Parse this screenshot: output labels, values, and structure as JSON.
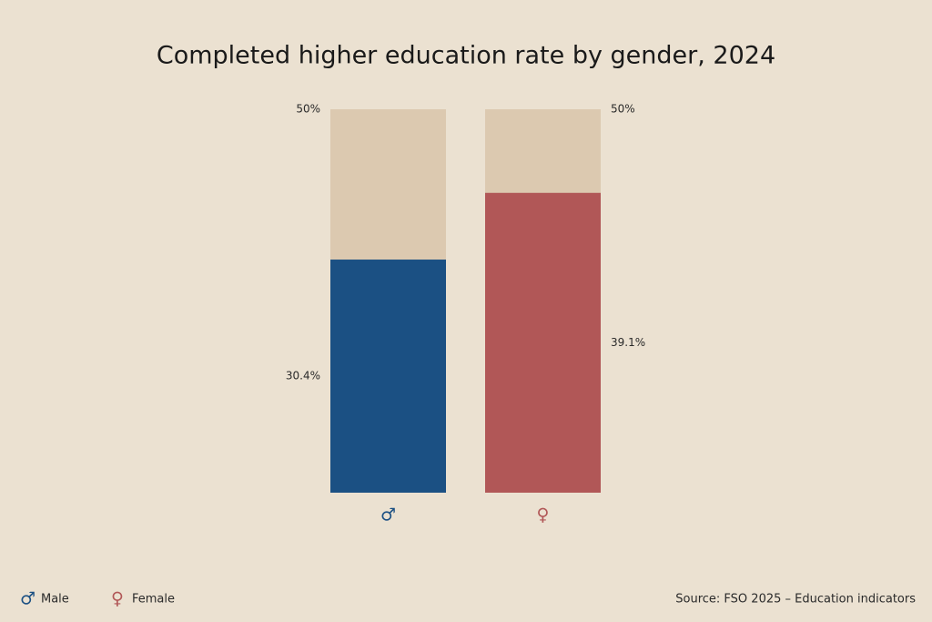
{
  "chart_data": {
    "type": "bar",
    "title": "Completed higher education rate by gender, 2024",
    "categories": [
      "♂",
      "♀"
    ],
    "category_names": [
      "Male",
      "Female"
    ],
    "values": [
      30.4,
      39.1
    ],
    "value_labels": [
      "30.4%",
      "39.1%"
    ],
    "colors": [
      "#1b5083",
      "#b15757"
    ],
    "track_color": "#dcc9b0",
    "ylim": [
      0,
      50
    ],
    "yticks": [
      {
        "value": 50,
        "label": "50%"
      }
    ],
    "source": "Source: FSO 2025 – Education indicators"
  }
}
